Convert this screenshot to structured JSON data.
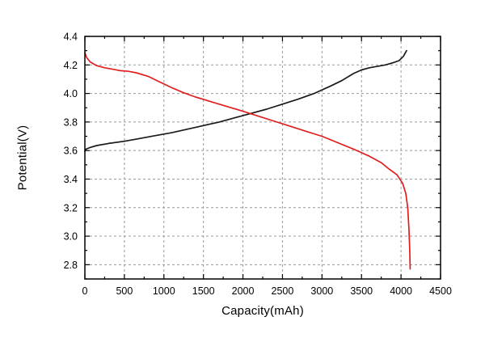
{
  "chart_data": {
    "type": "line",
    "title": "",
    "xlabel": "Capacity(mAh)",
    "ylabel": "Potential(V)",
    "xlim": [
      0,
      4500
    ],
    "ylim": [
      2.7,
      4.4
    ],
    "x_ticks": [
      0,
      500,
      1000,
      1500,
      2000,
      2500,
      3000,
      3500,
      4000,
      4500
    ],
    "y_ticks": [
      2.8,
      3.0,
      3.2,
      3.4,
      3.6,
      3.8,
      4.0,
      4.2,
      4.4
    ],
    "x_minor_step": 250,
    "y_minor_step": 0.1,
    "grid": true,
    "grid_color": "#999999",
    "axis_color": "#000000",
    "legend": "none",
    "series": [
      {
        "name": "black-curve",
        "color": "#1a1a1a",
        "x": [
          0,
          15,
          60,
          150,
          300,
          500,
          700,
          900,
          1100,
          1300,
          1500,
          1700,
          1900,
          2100,
          2300,
          2500,
          2700,
          2900,
          3100,
          3250,
          3400,
          3500,
          3600,
          3700,
          3800,
          3900,
          3975,
          4030,
          4070
        ],
        "y": [
          3.595,
          3.61,
          3.62,
          3.635,
          3.65,
          3.665,
          3.685,
          3.705,
          3.725,
          3.75,
          3.775,
          3.8,
          3.83,
          3.86,
          3.89,
          3.925,
          3.96,
          4.0,
          4.05,
          4.09,
          4.14,
          4.165,
          4.18,
          4.19,
          4.2,
          4.215,
          4.23,
          4.26,
          4.3
        ]
      },
      {
        "name": "red-curve",
        "color": "#e01f1f",
        "x": [
          0,
          25,
          70,
          150,
          250,
          350,
          450,
          550,
          650,
          800,
          950,
          1100,
          1250,
          1400,
          1550,
          1700,
          1850,
          2000,
          2200,
          2400,
          2600,
          2800,
          3000,
          3200,
          3400,
          3600,
          3750,
          3850,
          3950,
          4020,
          4060,
          4085,
          4100,
          4110,
          4115
        ],
        "y": [
          4.285,
          4.25,
          4.22,
          4.195,
          4.18,
          4.17,
          4.16,
          4.155,
          4.145,
          4.12,
          4.08,
          4.04,
          4.005,
          3.975,
          3.95,
          3.925,
          3.9,
          3.875,
          3.84,
          3.805,
          3.77,
          3.735,
          3.7,
          3.655,
          3.61,
          3.56,
          3.515,
          3.47,
          3.43,
          3.37,
          3.3,
          3.2,
          3.05,
          2.9,
          2.77
        ]
      }
    ]
  }
}
